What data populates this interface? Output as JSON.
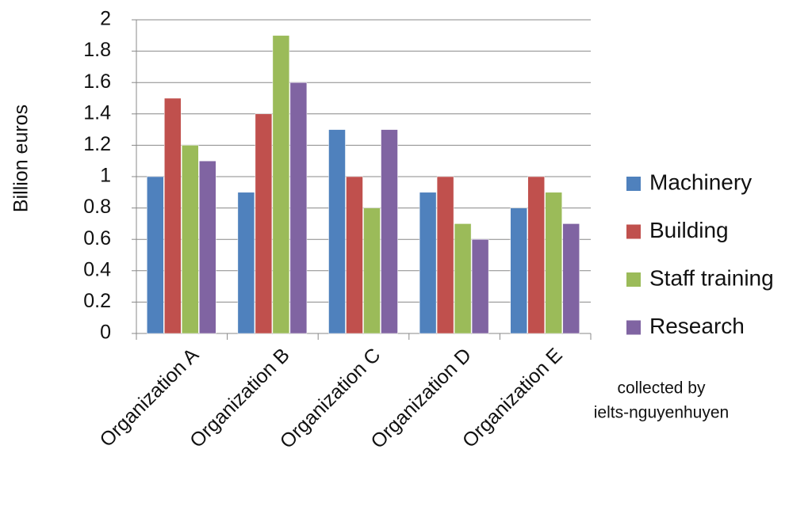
{
  "chart_data": {
    "type": "bar",
    "y_label": "Billion euros",
    "annotation": [
      "collected by",
      "ielts-nguyenhuyen"
    ],
    "categories": [
      "Organization A",
      "Organization B",
      "Organization C",
      "Organization D",
      "Organization E"
    ],
    "series": [
      {
        "name": "Machinery",
        "color": "#4f81bd",
        "values": [
          1,
          0.9,
          1.3,
          0.9,
          0.8
        ]
      },
      {
        "name": "Building",
        "color": "#c0504d",
        "values": [
          1.5,
          1.4,
          1,
          1,
          1
        ]
      },
      {
        "name": "Staff training",
        "color": "#9bbb59",
        "values": [
          1.2,
          1.9,
          0.8,
          0.7,
          0.9
        ]
      },
      {
        "name": "Research",
        "color": "#8064a2",
        "values": [
          1.1,
          1.6,
          1.3,
          0.6,
          0.7
        ]
      }
    ],
    "ylim": [
      0,
      2
    ],
    "yticks": [
      0,
      0.2,
      0.4,
      0.6,
      0.8,
      1,
      1.2,
      1.4,
      1.6,
      1.8,
      2
    ],
    "grid": true,
    "legend": "right"
  }
}
